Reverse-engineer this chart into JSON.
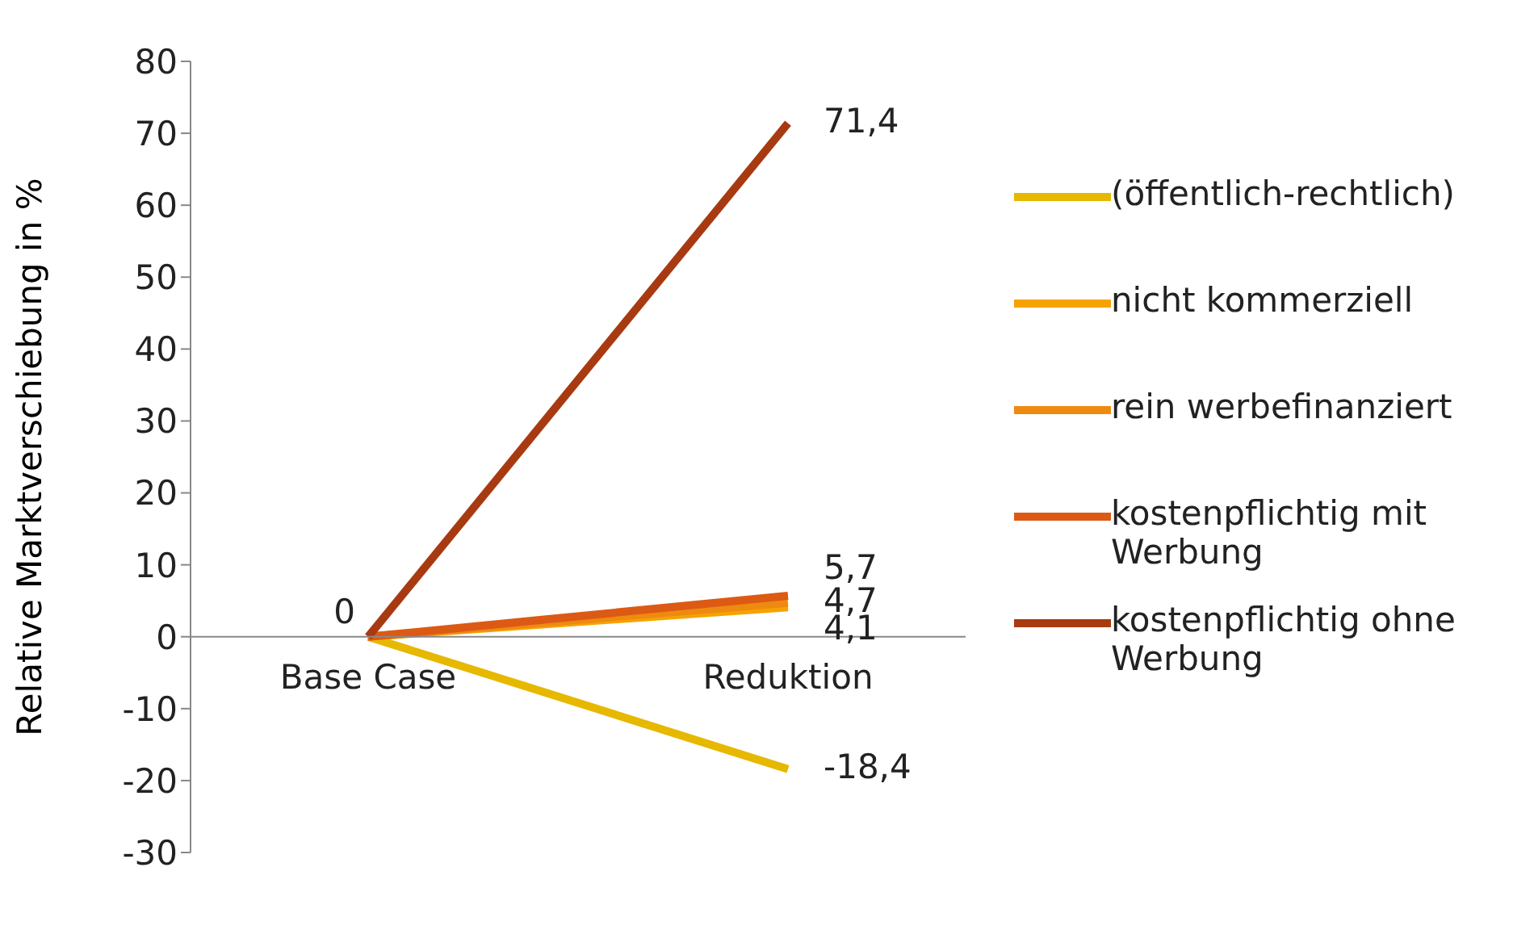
{
  "chart_data": {
    "type": "line",
    "ylabel": "Relative Marktverschiebung in %",
    "categories": [
      "Base Case",
      "Reduktion"
    ],
    "series": [
      {
        "name": "(öffentlich-rechtlich)",
        "color": "#e6b800",
        "values": [
          0,
          -18.4
        ],
        "value_labels": [
          null,
          "-18,4"
        ]
      },
      {
        "name": "nicht kommerziell",
        "color": "#f5a300",
        "values": [
          0,
          4.1
        ],
        "value_labels": [
          null,
          "4,1"
        ]
      },
      {
        "name": "rein werbefinanziert",
        "color": "#ee8a10",
        "values": [
          0,
          4.7
        ],
        "value_labels": [
          null,
          "4,7"
        ]
      },
      {
        "name": "kostenpflichtig mit Werbung",
        "color": "#dc5a14",
        "values": [
          0,
          5.7
        ],
        "value_labels": [
          null,
          "5,7"
        ]
      },
      {
        "name": "kostenpflichtig ohne Werbung",
        "color": "#a83a12",
        "values": [
          0,
          71.4
        ],
        "value_labels": [
          "0",
          "71,4"
        ]
      }
    ],
    "ylim": [
      -30,
      80
    ],
    "yticks": [
      -30,
      -20,
      -10,
      0,
      10,
      20,
      30,
      40,
      50,
      60,
      70,
      80
    ],
    "grid": false,
    "legend": "right",
    "marker": "none",
    "line_style": "solid"
  }
}
